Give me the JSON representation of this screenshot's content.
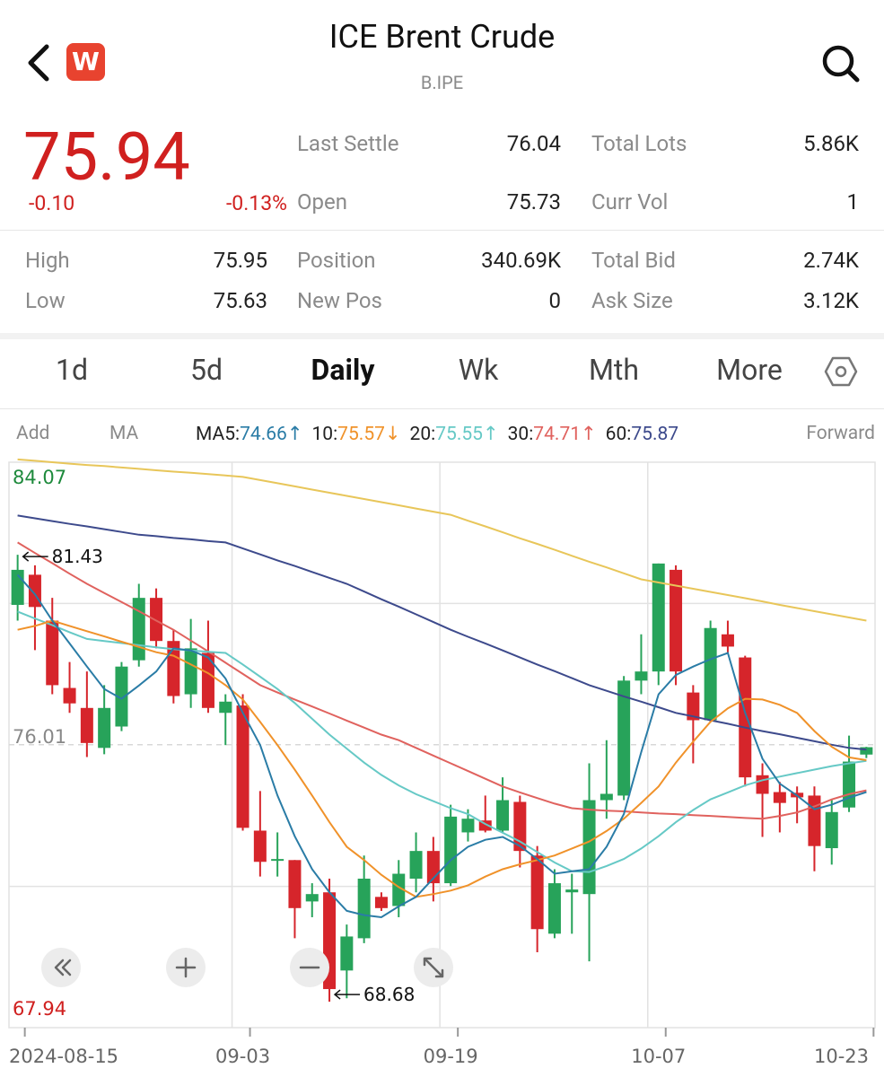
{
  "header": {
    "title": "ICE Brent Crude",
    "symbol": "B.IPE",
    "app_logo": "W"
  },
  "quote": {
    "price": "75.94",
    "change": "-0.10",
    "change_pct": "-0.13%"
  },
  "stats": [
    {
      "label": "Last Settle",
      "value": "76.04"
    },
    {
      "label": "Total Lots",
      "value": "5.86K"
    },
    {
      "label": "Open",
      "value": "75.73"
    },
    {
      "label": "Curr Vol",
      "value": "1"
    },
    {
      "label": "High",
      "value": "75.95"
    },
    {
      "label": "Position",
      "value": "340.69K"
    },
    {
      "label": "Total Bid",
      "value": "2.74K"
    },
    {
      "label": "Low",
      "value": "75.63"
    },
    {
      "label": "New Pos",
      "value": "0"
    },
    {
      "label": "Ask Size",
      "value": "3.12K"
    }
  ],
  "tabs": [
    "1d",
    "5d",
    "Daily",
    "Wk",
    "Mth",
    "More"
  ],
  "active_tab": 2,
  "indicator_bar": {
    "add": "Add",
    "ma": "MA",
    "forward": "Forward",
    "entries": [
      {
        "label": "MA5:",
        "value": "74.66",
        "arrow": "↑"
      },
      {
        "label": "10:",
        "value": "75.57",
        "arrow": "↓"
      },
      {
        "label": "20:",
        "value": "75.55",
        "arrow": "↑"
      },
      {
        "label": "30:",
        "value": "74.71",
        "arrow": "↑"
      },
      {
        "label": "60:",
        "value": "75.87",
        "arrow": ""
      }
    ]
  },
  "chart_data": {
    "type": "candlestick",
    "categories": [
      "2024-08-15",
      null,
      null,
      null,
      null,
      null,
      null,
      null,
      null,
      null,
      null,
      null,
      null,
      "09-03",
      null,
      null,
      null,
      null,
      null,
      null,
      null,
      null,
      null,
      null,
      null,
      "09-19",
      null,
      null,
      null,
      null,
      null,
      null,
      null,
      null,
      null,
      null,
      null,
      "10-07",
      null,
      null,
      null,
      null,
      null,
      null,
      null,
      null,
      null,
      null,
      null,
      "10-23"
    ],
    "open": [
      80.0,
      80.86,
      79.55,
      77.63,
      77.06,
      75.92,
      76.53,
      78.42,
      80.2,
      78.97,
      77.45,
      78.63,
      76.92,
      77.13,
      73.56,
      72.7,
      72.72,
      71.54,
      71.8,
      69.57,
      70.49,
      71.67,
      71.41,
      72.19,
      72.98,
      72.06,
      73.51,
      73.85,
      73.56,
      74.38,
      72.85,
      70.62,
      71.8,
      71.75,
      74.43,
      74.56,
      77.84,
      78.1,
      81.0,
      77.5,
      76.71,
      79.16,
      78.5,
      75.14,
      74.66,
      74.64,
      74.56,
      73.06,
      74.22,
      75.73
    ],
    "high": [
      81.43,
      81.13,
      80.2,
      78.37,
      78.1,
      77.71,
      78.37,
      80.6,
      80.47,
      79.29,
      79.6,
      79.55,
      77.45,
      77.45,
      74.69,
      73.51,
      72.72,
      72.06,
      72.19,
      70.88,
      72.85,
      71.8,
      72.72,
      73.51,
      73.38,
      74.3,
      74.17,
      74.56,
      75.08,
      74.56,
      73.12,
      72.46,
      72.33,
      75.48,
      76.14,
      77.97,
      79.16,
      81.18,
      81.13,
      77.71,
      79.55,
      79.55,
      78.55,
      75.48,
      74.95,
      74.82,
      74.82,
      74.43,
      76.27,
      75.95
    ],
    "low": [
      79.55,
      78.71,
      77.45,
      76.92,
      75.66,
      75.74,
      76.4,
      78.24,
      78.76,
      77.19,
      77.06,
      76.92,
      76.0,
      73.56,
      72.25,
      72.25,
      70.49,
      71.09,
      68.68,
      68.78,
      70.35,
      71.27,
      71.09,
      71.8,
      71.54,
      71.98,
      73.25,
      73.51,
      73.51,
      72.51,
      70.09,
      70.49,
      70.62,
      69.83,
      73.9,
      74.43,
      77.45,
      77.71,
      77.71,
      75.48,
      76.66,
      78.63,
      74.82,
      73.38,
      73.51,
      73.77,
      72.4,
      72.59,
      74.09,
      75.63
    ],
    "close": [
      81.0,
      79.94,
      77.71,
      77.19,
      76.06,
      77.06,
      78.24,
      80.2,
      78.97,
      77.4,
      78.76,
      77.06,
      77.24,
      73.64,
      72.67,
      72.75,
      71.35,
      71.75,
      69.04,
      70.54,
      72.19,
      71.35,
      72.33,
      72.98,
      72.06,
      73.96,
      73.9,
      73.56,
      74.43,
      72.98,
      70.75,
      72.06,
      71.88,
      74.43,
      74.61,
      77.84,
      78.1,
      81.18,
      78.1,
      76.71,
      79.34,
      78.81,
      75.08,
      74.61,
      74.35,
      74.51,
      73.12,
      74.09,
      75.53,
      75.94
    ],
    "up_color": "#27a35a",
    "down_color": "#d6252b",
    "ma": [
      {
        "color": "#e8c65a",
        "values": [
          84.15,
          84.11,
          84.07,
          84.03,
          83.99,
          83.96,
          83.92,
          83.88,
          83.84,
          83.8,
          83.77,
          83.73,
          83.69,
          83.65,
          83.56,
          83.47,
          83.38,
          83.29,
          83.2,
          83.11,
          83.02,
          82.93,
          82.84,
          82.75,
          82.66,
          82.57,
          82.4,
          82.24,
          82.07,
          81.9,
          81.74,
          81.57,
          81.4,
          81.23,
          81.07,
          80.9,
          80.73,
          80.64,
          80.55,
          80.46,
          80.37,
          80.28,
          80.19,
          80.1,
          80.0,
          79.91,
          79.82,
          79.73,
          79.64,
          79.55
        ]
      },
      {
        "color": "#3d4a8c",
        "values": [
          82.55,
          82.47,
          82.39,
          82.31,
          82.24,
          82.16,
          82.08,
          82.0,
          81.96,
          81.91,
          81.87,
          81.82,
          81.78,
          81.61,
          81.44,
          81.27,
          81.11,
          80.94,
          80.77,
          80.6,
          80.38,
          80.16,
          79.95,
          79.73,
          79.51,
          79.29,
          79.09,
          78.9,
          78.7,
          78.5,
          78.3,
          78.11,
          77.91,
          77.71,
          77.55,
          77.39,
          77.24,
          77.08,
          76.92,
          76.82,
          76.71,
          76.61,
          76.5,
          76.4,
          76.31,
          76.21,
          76.11,
          76.01,
          75.92,
          75.87
        ]
      },
      {
        "color": "#e0625e",
        "values": [
          81.78,
          81.48,
          81.19,
          80.89,
          80.6,
          80.34,
          80.08,
          79.82,
          79.55,
          79.29,
          78.98,
          78.67,
          78.35,
          78.03,
          77.71,
          77.5,
          77.3,
          77.1,
          76.9,
          76.7,
          76.5,
          76.3,
          76.14,
          75.92,
          75.7,
          75.48,
          75.26,
          75.04,
          74.82,
          74.65,
          74.49,
          74.33,
          74.2,
          74.16,
          74.13,
          74.11,
          74.08,
          74.05,
          74.03,
          74.0,
          73.98,
          73.95,
          73.92,
          73.9,
          73.98,
          74.08,
          74.25,
          74.45,
          74.6,
          74.71
        ]
      },
      {
        "color": "#66c9c6",
        "values": [
          79.81,
          79.61,
          79.42,
          79.22,
          79.03,
          78.97,
          78.91,
          78.85,
          78.79,
          78.74,
          78.7,
          78.66,
          78.63,
          78.3,
          77.95,
          77.6,
          77.2,
          76.75,
          76.3,
          75.9,
          75.5,
          75.15,
          74.85,
          74.6,
          74.4,
          74.2,
          74.03,
          73.75,
          73.5,
          73.25,
          72.95,
          72.65,
          72.4,
          72.38,
          72.55,
          72.75,
          73.05,
          73.4,
          73.8,
          74.15,
          74.45,
          74.65,
          74.85,
          75.0,
          75.1,
          75.2,
          75.3,
          75.4,
          75.48,
          75.55
        ]
      },
      {
        "color": "#f0922a",
        "values": [
          79.29,
          79.4,
          79.55,
          79.4,
          79.25,
          79.1,
          78.95,
          78.8,
          78.65,
          78.55,
          78.3,
          78.05,
          77.71,
          77.3,
          76.66,
          76.0,
          75.3,
          74.56,
          73.8,
          73.1,
          72.72,
          72.3,
          71.95,
          71.67,
          71.75,
          71.85,
          72.0,
          72.25,
          72.46,
          72.6,
          72.72,
          72.85,
          73.05,
          73.25,
          73.55,
          73.9,
          74.35,
          74.82,
          75.5,
          76.1,
          76.66,
          77.05,
          77.32,
          77.3,
          77.15,
          76.92,
          76.4,
          75.95,
          75.65,
          75.57
        ]
      },
      {
        "color": "#2a7ca6",
        "values": [
          80.86,
          80.3,
          79.55,
          78.9,
          78.24,
          77.6,
          77.32,
          77.7,
          78.1,
          78.76,
          78.7,
          78.5,
          77.9,
          76.92,
          76.0,
          74.56,
          73.4,
          72.46,
          71.8,
          71.27,
          71.15,
          71.09,
          71.4,
          71.67,
          72.2,
          72.72,
          73.1,
          73.3,
          73.38,
          73.12,
          72.75,
          72.33,
          72.4,
          72.46,
          73.1,
          74.03,
          75.8,
          77.45,
          78.0,
          78.24,
          78.45,
          78.63,
          76.92,
          75.61,
          74.9,
          74.56,
          74.17,
          74.3,
          74.5,
          74.66
        ]
      }
    ],
    "ylim": [
      67.94,
      84.07
    ],
    "yticks": [
      84.07,
      76.01,
      67.94
    ],
    "grid_lines": [
      80.04,
      71.97
    ],
    "max_high": 81.43,
    "min_low": 68.68
  }
}
